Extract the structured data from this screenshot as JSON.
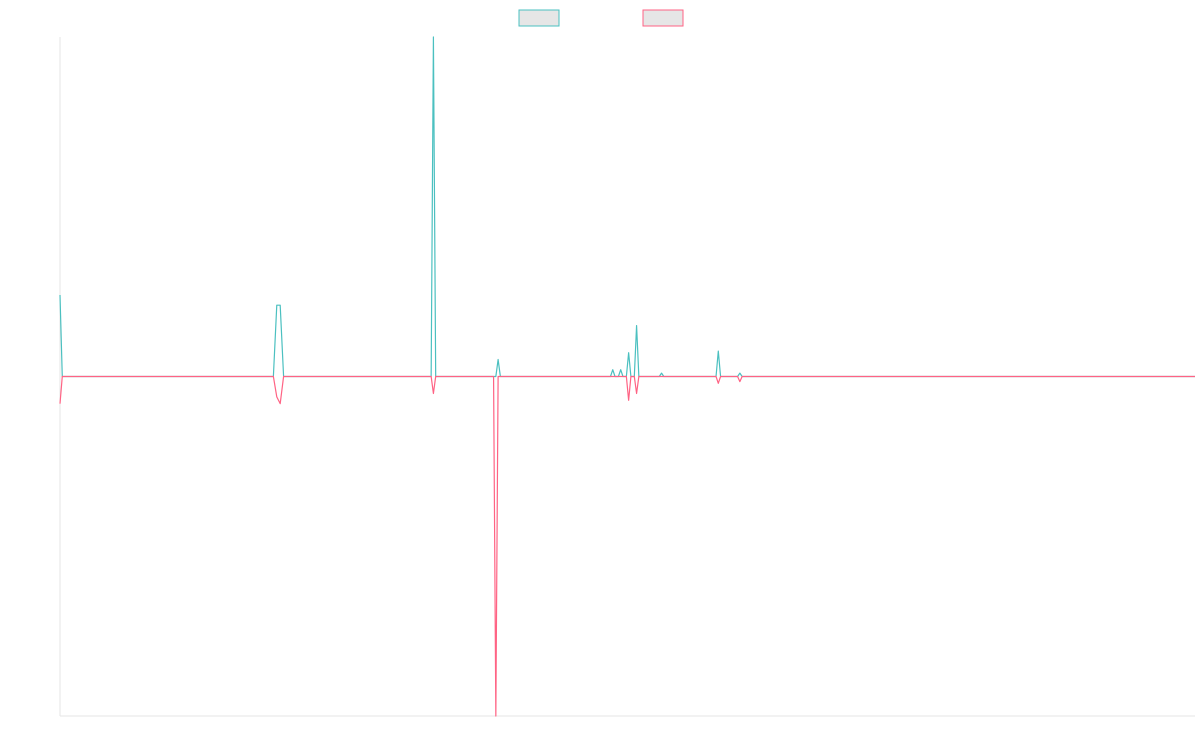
{
  "chart_data": {
    "type": "line",
    "title": "",
    "xlabel": "",
    "ylabel": "",
    "x_range": [
      0,
      100
    ],
    "ylim": [
      -1.0,
      1.0
    ],
    "grid": false,
    "legend_position": "top-center",
    "series": [
      {
        "color": "#4bc0c0",
        "points": [
          [
            0,
            0.24
          ],
          [
            0.2,
            0
          ],
          [
            18.8,
            0
          ],
          [
            19.1,
            0.21
          ],
          [
            19.4,
            0.21
          ],
          [
            19.7,
            0
          ],
          [
            32.7,
            0
          ],
          [
            32.9,
            1.0
          ],
          [
            33.1,
            0
          ],
          [
            38.4,
            0
          ],
          [
            38.6,
            0.05
          ],
          [
            38.8,
            0
          ],
          [
            48.5,
            0
          ],
          [
            48.7,
            0.02
          ],
          [
            48.9,
            0
          ],
          [
            49.2,
            0
          ],
          [
            49.4,
            0.02
          ],
          [
            49.6,
            0
          ],
          [
            49.9,
            0
          ],
          [
            50.1,
            0.07
          ],
          [
            50.3,
            0
          ],
          [
            50.6,
            0
          ],
          [
            50.8,
            0.15
          ],
          [
            51.0,
            0
          ],
          [
            52.8,
            0
          ],
          [
            53.0,
            0.01
          ],
          [
            53.2,
            0
          ],
          [
            57.8,
            0
          ],
          [
            58.0,
            0.075
          ],
          [
            58.2,
            0
          ],
          [
            59.7,
            0
          ],
          [
            59.9,
            0.01
          ],
          [
            60.1,
            0
          ],
          [
            100,
            0
          ]
        ]
      },
      {
        "color": "#ff6384",
        "points": [
          [
            0,
            -0.08
          ],
          [
            0.2,
            0
          ],
          [
            18.8,
            0
          ],
          [
            19.1,
            -0.06
          ],
          [
            19.4,
            -0.08
          ],
          [
            19.7,
            0
          ],
          [
            32.7,
            0
          ],
          [
            32.9,
            -0.05
          ],
          [
            33.1,
            0
          ],
          [
            38.2,
            0
          ],
          [
            38.4,
            -1.0
          ],
          [
            38.6,
            0
          ],
          [
            49.9,
            0
          ],
          [
            50.1,
            -0.07
          ],
          [
            50.3,
            0
          ],
          [
            50.6,
            0
          ],
          [
            50.8,
            -0.05
          ],
          [
            51.0,
            0
          ],
          [
            57.8,
            0
          ],
          [
            58.0,
            -0.02
          ],
          [
            58.2,
            0
          ],
          [
            59.7,
            0
          ],
          [
            59.9,
            -0.015
          ],
          [
            60.1,
            0
          ],
          [
            100,
            0
          ]
        ]
      }
    ]
  }
}
